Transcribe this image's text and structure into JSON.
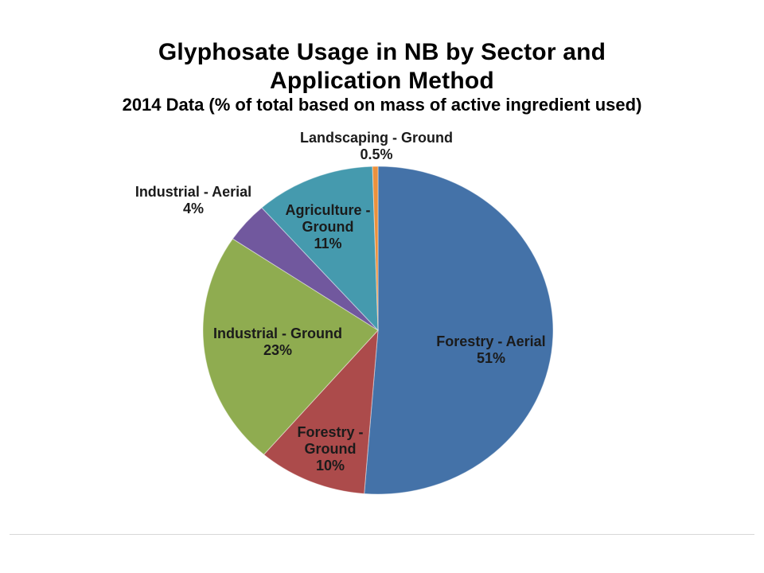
{
  "page": {
    "title_lines": [
      "Glyphosate Usage in NB by Sector and",
      "Application Method"
    ],
    "subtitle": "2014 Data (% of total based on mass of active ingredient used)"
  },
  "chart_data": {
    "type": "pie",
    "title": "Glyphosate Usage in NB by Sector and Application Method",
    "subtitle": "2014 Data (% of total based on mass of active ingredient used)",
    "value_unit": "percent of total mass of active ingredient",
    "start_angle_deg": 0,
    "direction": "clockwise",
    "legend": "none",
    "labels": "on-and-around-slices",
    "slices": [
      {
        "label": "Forestry - Aerial",
        "value": 51,
        "display": "51%",
        "color": "#4472A8",
        "label_lines": [
          "Forestry - Aerial",
          "51%"
        ]
      },
      {
        "label": "Forestry - Ground",
        "value": 10,
        "display": "10%",
        "color": "#AC4B4B",
        "label_lines": [
          "Forestry -",
          "Ground",
          "10%"
        ]
      },
      {
        "label": "Industrial - Ground",
        "value": 23,
        "display": "23%",
        "color": "#8FAC50",
        "label_lines": [
          "Industrial - Ground",
          "23%"
        ]
      },
      {
        "label": "Industrial - Aerial",
        "value": 4,
        "display": "4%",
        "color": "#71589E",
        "label_lines": [
          "Industrial - Aerial",
          "4%"
        ]
      },
      {
        "label": "Agriculture - Ground",
        "value": 11,
        "display": "11%",
        "color": "#459AAE",
        "label_lines": [
          "Agriculture -",
          "Ground",
          "11%"
        ]
      },
      {
        "label": "Landscaping - Ground",
        "value": 0.5,
        "display": "0.5%",
        "color": "#EC913D",
        "label_lines": [
          "Landscaping - Ground",
          "0.5%"
        ]
      }
    ]
  }
}
